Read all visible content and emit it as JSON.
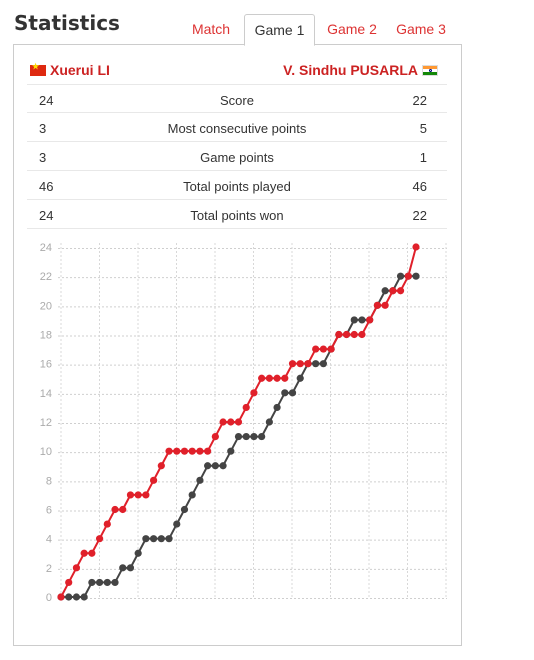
{
  "header": {
    "title": "Statistics"
  },
  "tabs": [
    {
      "label": "Match",
      "active": false
    },
    {
      "label": "Game 1",
      "active": true
    },
    {
      "label": "Game 2",
      "active": false
    },
    {
      "label": "Game 3",
      "active": false
    }
  ],
  "players": {
    "left": {
      "name": "Xuerui LI",
      "flag_icon": "china-flag-icon"
    },
    "right": {
      "name": "V. Sindhu PUSARLA",
      "flag_icon": "india-flag-icon"
    }
  },
  "stats": [
    {
      "label": "Score",
      "left": "24",
      "right": "22"
    },
    {
      "label": "Most consecutive points",
      "left": "3",
      "right": "5"
    },
    {
      "label": "Game points",
      "left": "3",
      "right": "1"
    },
    {
      "label": "Total points played",
      "left": "46",
      "right": "46"
    },
    {
      "label": "Total points won",
      "left": "24",
      "right": "22"
    }
  ],
  "colors": {
    "player_left": "#e0202a",
    "player_right": "#444444",
    "accent": "#dd3333"
  },
  "chart_data": {
    "type": "line",
    "title": "",
    "xlabel": "",
    "ylabel": "",
    "ylim": [
      0,
      24
    ],
    "yticks": [
      "0",
      "2",
      "4",
      "6",
      "8",
      "10",
      "12",
      "14",
      "16",
      "18",
      "20",
      "22",
      "24"
    ],
    "grid": true,
    "x": [
      0,
      1,
      2,
      3,
      4,
      5,
      6,
      7,
      8,
      9,
      10,
      11,
      12,
      13,
      14,
      15,
      16,
      17,
      18,
      19,
      20,
      21,
      22,
      23,
      24,
      25,
      26,
      27,
      28,
      29,
      30,
      31,
      32,
      33,
      34,
      35,
      36,
      37,
      38,
      39,
      40,
      41,
      42,
      43,
      44,
      45,
      46
    ],
    "series": [
      {
        "name": "Xuerui LI",
        "color": "#e0202a",
        "values": [
          0,
          1,
          2,
          3,
          3,
          4,
          5,
          6,
          6,
          7,
          7,
          7,
          8,
          9,
          10,
          10,
          10,
          10,
          10,
          10,
          11,
          12,
          12,
          12,
          13,
          14,
          15,
          15,
          15,
          15,
          16,
          16,
          16,
          17,
          17,
          17,
          18,
          18,
          18,
          18,
          19,
          20,
          20,
          21,
          21,
          22,
          24
        ]
      },
      {
        "name": "V. Sindhu PUSARLA",
        "color": "#444444",
        "values": [
          0,
          0,
          0,
          0,
          1,
          1,
          1,
          1,
          2,
          2,
          3,
          4,
          4,
          4,
          4,
          5,
          6,
          7,
          8,
          9,
          9,
          9,
          10,
          11,
          11,
          11,
          11,
          12,
          13,
          14,
          14,
          15,
          16,
          16,
          16,
          17,
          18,
          18,
          19,
          19,
          19,
          20,
          21,
          21,
          22,
          22,
          22
        ]
      }
    ]
  }
}
